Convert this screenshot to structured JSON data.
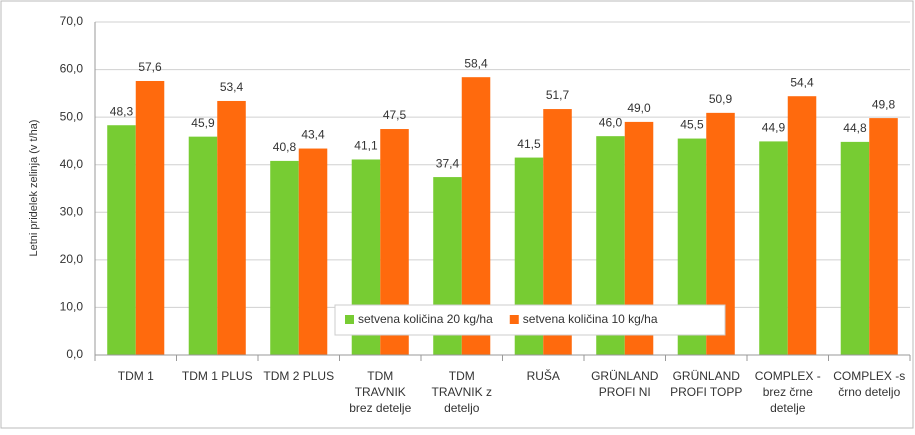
{
  "chart_data": {
    "type": "bar",
    "y_label": "Letni pridelek zelinja (v t/ha)",
    "categories": [
      [
        "TDM 1"
      ],
      [
        "TDM 1 PLUS"
      ],
      [
        "TDM 2 PLUS"
      ],
      [
        "TDM",
        "TRAVNIK",
        "brez detelje"
      ],
      [
        "TDM",
        "TRAVNIK z",
        "deteljo"
      ],
      [
        "RUŠA"
      ],
      [
        "GRÜNLAND",
        "PROFI NI"
      ],
      [
        "GRÜNLAND",
        "PROFI TOPP"
      ],
      [
        "COMPLEX -",
        "brez črne",
        "detelje"
      ],
      [
        "COMPLEX -s",
        "črno deteljo"
      ]
    ],
    "series": [
      {
        "name": "setvena količina 20 kg/ha",
        "color": "#77cc33",
        "values": [
          48.3,
          45.9,
          40.8,
          41.1,
          37.4,
          41.5,
          46.0,
          45.5,
          44.9,
          44.8
        ],
        "value_labels": [
          "48,3",
          "45,9",
          "40,8",
          "41,1",
          "37,4",
          "41,5",
          "46,0",
          "45,5",
          "44,9",
          "44,8"
        ]
      },
      {
        "name": "setvena količina 10 kg/ha",
        "color": "#ff6a0d",
        "values": [
          57.6,
          53.4,
          43.4,
          47.5,
          58.4,
          51.7,
          49.0,
          50.9,
          54.4,
          49.8
        ],
        "value_labels": [
          "57,6",
          "53,4",
          "43,4",
          "47,5",
          "58,4",
          "51,7",
          "49,0",
          "50,9",
          "54,4",
          "49,8"
        ]
      }
    ],
    "ylim": [
      0,
      70
    ],
    "yticks": [
      {
        "value": 0,
        "label": "0,0"
      },
      {
        "value": 10,
        "label": "10,0"
      },
      {
        "value": 20,
        "label": "20,0"
      },
      {
        "value": 30,
        "label": "30,0"
      },
      {
        "value": 40,
        "label": "40,0"
      },
      {
        "value": 50,
        "label": "50,0"
      },
      {
        "value": 60,
        "label": "60,0"
      },
      {
        "value": 70,
        "label": "70,0"
      }
    ],
    "grid": true
  }
}
